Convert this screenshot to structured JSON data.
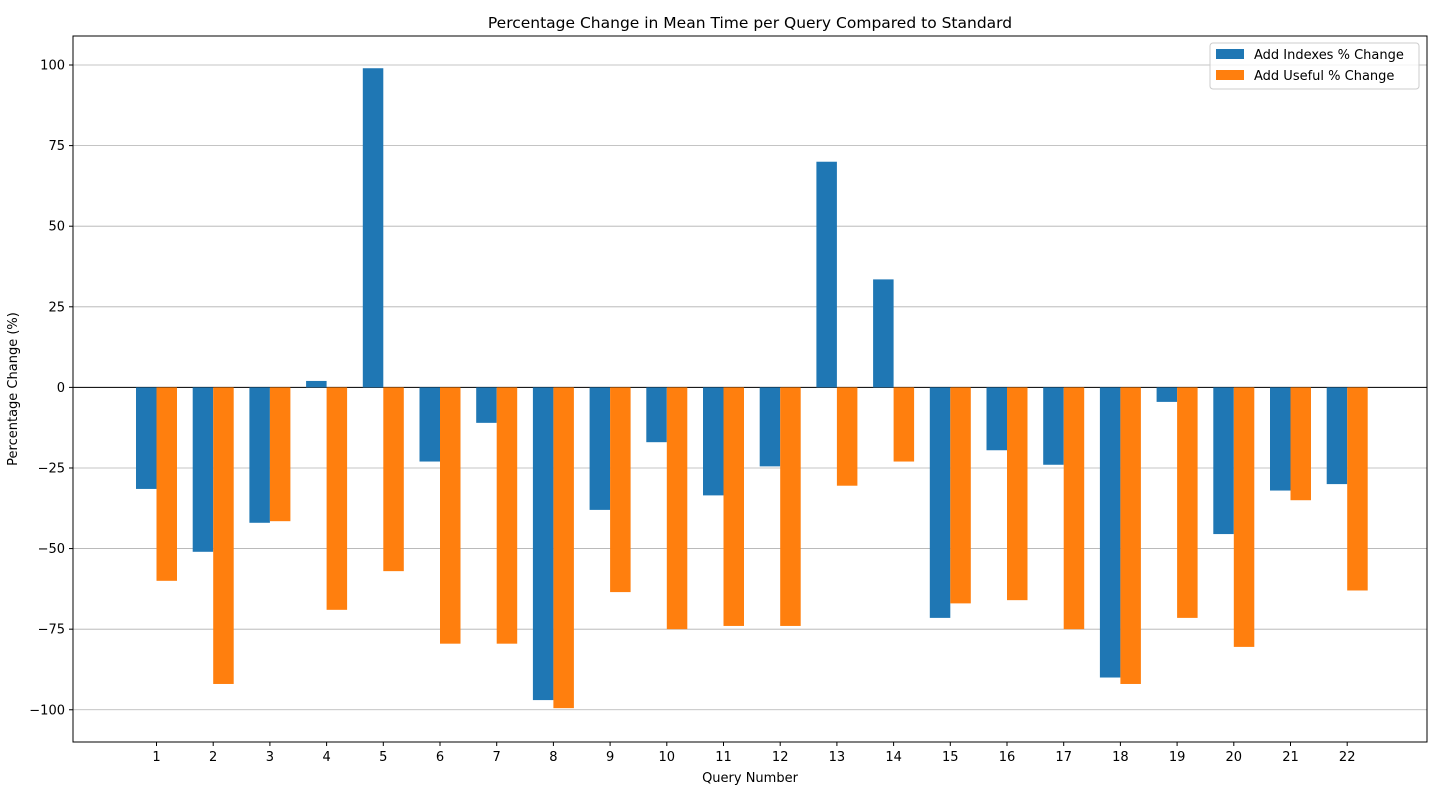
{
  "chart_data": {
    "type": "bar",
    "title": "Percentage Change in Mean Time per Query Compared to Standard",
    "xlabel": "Query Number",
    "ylabel": "Percentage Change (%)",
    "categories": [
      "1",
      "2",
      "3",
      "4",
      "5",
      "6",
      "7",
      "8",
      "9",
      "10",
      "11",
      "12",
      "13",
      "14",
      "15",
      "16",
      "17",
      "18",
      "19",
      "20",
      "21",
      "22"
    ],
    "ylim": [
      -110,
      109
    ],
    "yticks": [
      -100,
      -75,
      -50,
      -25,
      0,
      25,
      50,
      75,
      100
    ],
    "ytick_labels": [
      "−100",
      "−75",
      "−50",
      "−25",
      "0",
      "25",
      "50",
      "75",
      "100"
    ],
    "grid": "y",
    "legend_position": "top-right",
    "series": [
      {
        "name": "Add Indexes % Change",
        "color": "#1f77b4",
        "values": [
          -31.5,
          -51,
          -42,
          2,
          99,
          -23,
          -11,
          -97,
          -38,
          -17,
          -33.5,
          -24.5,
          70,
          33.5,
          -71.5,
          -19.5,
          -24,
          -90,
          -4.5,
          -45.5,
          -32,
          -30
        ]
      },
      {
        "name": "Add Useful % Change",
        "color": "#ff7f0e",
        "values": [
          -60,
          -92,
          -41.5,
          -69,
          -57,
          -79.5,
          -79.5,
          -99.5,
          -63.5,
          -75,
          -74,
          -74,
          -30.5,
          -23,
          -67,
          -66,
          -75,
          -92,
          -71.5,
          -80.5,
          -35,
          -63
        ]
      }
    ]
  }
}
